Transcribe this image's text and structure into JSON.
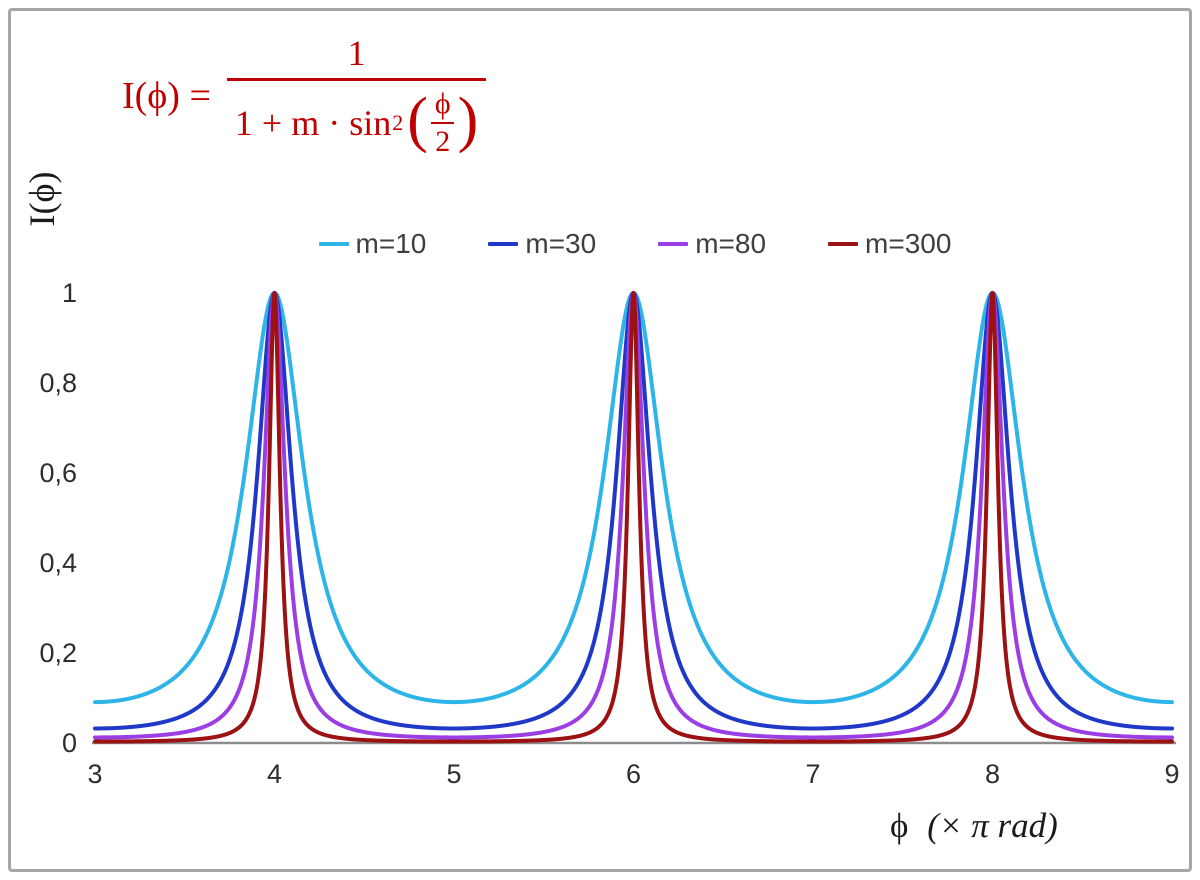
{
  "frame": {
    "background": "#FFFFFF",
    "border_color": "#A6A6A6"
  },
  "formula": {
    "lhs": "I(ϕ) =",
    "numerator": "1",
    "denom_prefix": "1 + m · sin",
    "denom_sup": "2",
    "open_paren": "(",
    "close_paren": ")",
    "inner_num": "ϕ",
    "inner_den": "2",
    "color": "#C00000"
  },
  "axes": {
    "y_label": "I(ϕ)",
    "x_label_phi": "ϕ",
    "x_label_unit": "(× π rad)"
  },
  "chart_data": {
    "type": "line",
    "title": "",
    "formula": "I(ϕ) = 1 / (1 + m·sin²(ϕ/2)) with ϕ expressed in units of π rad; peaks of height 1 at ϕ = 4π, 6π, 8π",
    "xlabel": "ϕ (× π rad)",
    "ylabel": "I(ϕ)",
    "xlim": [
      3,
      9
    ],
    "ylim": [
      0,
      1
    ],
    "x_ticks": [
      3,
      4,
      5,
      6,
      7,
      8,
      9
    ],
    "y_ticks": [
      {
        "value": 0,
        "label": "0"
      },
      {
        "value": 0.2,
        "label": "0,2"
      },
      {
        "value": 0.4,
        "label": "0,4"
      },
      {
        "value": 0.6,
        "label": "0,6"
      },
      {
        "value": 0.8,
        "label": "0,8"
      },
      {
        "value": 1,
        "label": "1"
      }
    ],
    "grid": false,
    "legend_position": "top-center",
    "axis_color": "#8c8c8c",
    "tick_color": "#2e2e2e",
    "peaks_x": [
      4,
      6,
      8
    ],
    "series": [
      {
        "name": "m=10",
        "m": 10,
        "color": "#2eb5e8",
        "min_value": 0.0909
      },
      {
        "name": "m=30",
        "m": 30,
        "color": "#2038c8",
        "min_value": 0.0323
      },
      {
        "name": "m=80",
        "m": 80,
        "color": "#9b3fe4",
        "min_value": 0.0123
      },
      {
        "name": "m=300",
        "m": 300,
        "color": "#9c1111",
        "min_value": 0.0033
      }
    ]
  }
}
